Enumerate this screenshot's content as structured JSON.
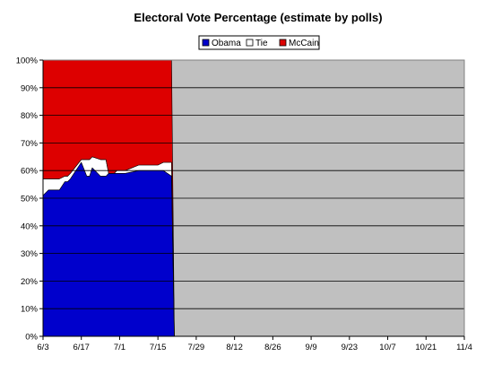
{
  "chart_data": {
    "type": "area",
    "stacked": true,
    "title": "Electoral Vote Percentage (estimate by polls)",
    "xlabel": "",
    "ylabel": "",
    "x": [
      "6/3",
      "6/5",
      "6/6",
      "6/7",
      "6/9",
      "6/11",
      "6/12",
      "6/13",
      "6/17",
      "6/19",
      "6/20",
      "6/21",
      "6/24",
      "6/25",
      "6/26",
      "6/27",
      "6/29",
      "6/30",
      "7/1",
      "7/3",
      "7/8",
      "7/10",
      "7/13",
      "7/15",
      "7/17",
      "7/20",
      "7/21"
    ],
    "x_ticks": [
      "6/3",
      "6/17",
      "7/1",
      "7/15",
      "7/29",
      "8/12",
      "8/26",
      "9/9",
      "9/23",
      "10/7",
      "10/21",
      "11/4"
    ],
    "y_ticks": [
      "0%",
      "10%",
      "20%",
      "30%",
      "40%",
      "50%",
      "60%",
      "70%",
      "80%",
      "90%",
      "100%"
    ],
    "ylim": [
      0,
      100
    ],
    "series": [
      {
        "name": "Obama",
        "color": "#0000cc",
        "values": [
          51,
          53,
          53,
          53,
          53,
          56,
          56,
          57,
          63,
          58,
          58,
          61,
          58,
          58,
          58,
          59,
          59,
          59,
          59,
          59,
          60,
          60,
          60,
          60,
          60,
          58,
          0
        ]
      },
      {
        "name": "Tie",
        "color": "#ffffff",
        "values": [
          6,
          4,
          4,
          4,
          4,
          2,
          2,
          2,
          1,
          6,
          6,
          4,
          6,
          6,
          6,
          0,
          0,
          1,
          1,
          1,
          2,
          2,
          2,
          2,
          3,
          5,
          0
        ]
      },
      {
        "name": "McCain",
        "color": "#dd0000",
        "values": [
          43,
          43,
          43,
          43,
          43,
          42,
          42,
          41,
          36,
          36,
          36,
          35,
          36,
          36,
          36,
          41,
          41,
          40,
          40,
          40,
          38,
          38,
          38,
          38,
          37,
          37,
          0
        ]
      }
    ],
    "legend_position": "top-center",
    "grid": true,
    "plot_background": "#c0c0c0"
  }
}
